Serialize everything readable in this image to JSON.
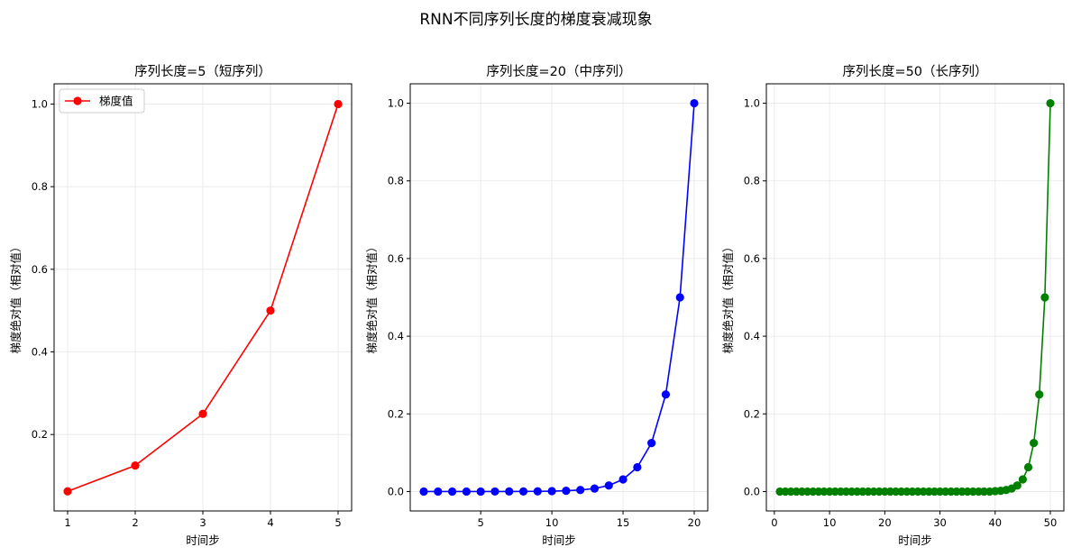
{
  "figure": {
    "suptitle": "RNN不同序列长度的梯度衰减现象"
  },
  "chart_data": [
    {
      "type": "line",
      "title": "序列长度=5（短序列）",
      "xlabel": "时间步",
      "ylabel": "梯度绝对值（相对值）",
      "x": [
        1,
        2,
        3,
        4,
        5
      ],
      "series": [
        {
          "name": "梯度值",
          "color": "#ff0000",
          "marker": "circle",
          "values": [
            0.0625,
            0.125,
            0.25,
            0.5,
            1.0
          ]
        }
      ],
      "xlim": [
        0.8,
        5.2
      ],
      "ylim": [
        0.015,
        1.049
      ],
      "xticks": [
        1,
        2,
        3,
        4,
        5
      ],
      "yticks": [
        0.2,
        0.4,
        0.6,
        0.8,
        1.0
      ],
      "grid": true,
      "legend": "top-left"
    },
    {
      "type": "line",
      "title": "序列长度=20（中序列）",
      "xlabel": "时间步",
      "ylabel": "梯度绝对值（相对值）",
      "x": [
        1,
        2,
        3,
        4,
        5,
        6,
        7,
        8,
        9,
        10,
        11,
        12,
        13,
        14,
        15,
        16,
        17,
        18,
        19,
        20
      ],
      "series": [
        {
          "color": "#0000ff",
          "marker": "circle",
          "values": [
            1.9e-06,
            3.8e-06,
            7.6e-06,
            1.53e-05,
            3.05e-05,
            6.1e-05,
            0.000122,
            0.000244,
            0.000488,
            0.000977,
            0.00195,
            0.0039,
            0.0078,
            0.0156,
            0.03125,
            0.0625,
            0.125,
            0.25,
            0.5,
            1.0
          ]
        }
      ],
      "xlim": [
        0.05,
        20.95
      ],
      "ylim": [
        -0.05,
        1.05
      ],
      "xticks": [
        5,
        10,
        15,
        20
      ],
      "yticks": [
        0.0,
        0.2,
        0.4,
        0.6,
        0.8,
        1.0
      ],
      "grid": true
    },
    {
      "type": "line",
      "title": "序列长度=50（长序列）",
      "xlabel": "时间步",
      "ylabel": "梯度绝对值（相对值）",
      "x": [
        1,
        2,
        3,
        4,
        5,
        6,
        7,
        8,
        9,
        10,
        11,
        12,
        13,
        14,
        15,
        16,
        17,
        18,
        19,
        20,
        21,
        22,
        23,
        24,
        25,
        26,
        27,
        28,
        29,
        30,
        31,
        32,
        33,
        34,
        35,
        36,
        37,
        38,
        39,
        40,
        41,
        42,
        43,
        44,
        45,
        46,
        47,
        48,
        49,
        50
      ],
      "series": [
        {
          "color": "#008000",
          "marker": "circle",
          "values": [
            0,
            0,
            0,
            0,
            0,
            0,
            0,
            0,
            0,
            0,
            0,
            0,
            0,
            0,
            0,
            0,
            0,
            0,
            0,
            0,
            0,
            0,
            0,
            0,
            0,
            0,
            0,
            0,
            0,
            0,
            0,
            0,
            0,
            0,
            0,
            0,
            0,
            0,
            0,
            0.000977,
            0.00195,
            0.0039,
            0.0078,
            0.0156,
            0.03125,
            0.0625,
            0.125,
            0.25,
            0.5,
            1.0
          ]
        }
      ],
      "xlim": [
        -1.45,
        52.45
      ],
      "ylim": [
        -0.05,
        1.05
      ],
      "xticks": [
        0,
        10,
        20,
        30,
        40,
        50
      ],
      "yticks": [
        0.0,
        0.2,
        0.4,
        0.6,
        0.8,
        1.0
      ],
      "grid": true
    }
  ]
}
